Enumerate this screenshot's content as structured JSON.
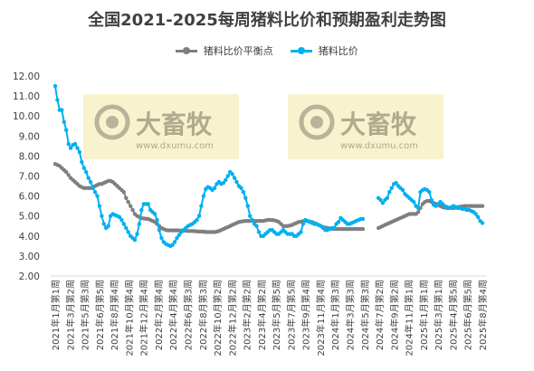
{
  "chart_data": {
    "type": "line",
    "title": "全国2021-2025每周猪料比价和预期盈利走势图",
    "xlabel": "",
    "ylabel": "",
    "ylim": [
      2,
      12
    ],
    "yticks": [
      "2.00",
      "3.00",
      "4.00",
      "5.00",
      "6.00",
      "7.00",
      "8.00",
      "9.00",
      "10.00",
      "11.00",
      "12.00"
    ],
    "grid": false,
    "legend_position": "top",
    "x_tick_labels": [
      "2021年1月第1周",
      "2021年3月第2周",
      "2021年5月第3周",
      "2021年6月第5周",
      "2021年8月第4周",
      "2021年10月第4周",
      "2021年12月第4周",
      "2022年2月第4周",
      "2022年4月第4周",
      "2022年6月第3周",
      "2022年8月第3周",
      "2022年10月第2周",
      "2022年12月第2周",
      "2023年2月第2周",
      "2023年4月第2周",
      "2023年5月第5周",
      "2023年7月第5周",
      "2023年9月第4周",
      "2023年11月第4周",
      "2024年1月第3周",
      "2024年3月第3周",
      "2024年5月第3周",
      "2024年7月第2周",
      "2024年9月第2周",
      "2024年11月第1周",
      "2025年1月第1周",
      "2025年3月第1周",
      "2025年4月第5周",
      "2025年6月第5周",
      "2025年8月第4周"
    ],
    "series": [
      {
        "name": "猪料比价平衡点",
        "color": "#7f7f7f",
        "values": [
          7.6,
          7.55,
          7.5,
          7.4,
          7.3,
          7.2,
          7.05,
          6.9,
          6.8,
          6.7,
          6.6,
          6.5,
          6.45,
          6.4,
          6.4,
          6.4,
          6.4,
          6.45,
          6.5,
          6.55,
          6.6,
          6.6,
          6.65,
          6.7,
          6.75,
          6.75,
          6.7,
          6.6,
          6.5,
          6.4,
          6.3,
          6.2,
          5.9,
          5.7,
          5.5,
          5.3,
          5.1,
          5.0,
          4.95,
          4.9,
          4.88,
          4.86,
          4.85,
          4.8,
          4.75,
          4.7,
          4.6,
          4.5,
          4.4,
          4.35,
          4.3,
          4.28,
          4.28,
          4.28,
          4.28,
          4.28,
          4.27,
          4.27,
          4.27,
          4.26,
          4.25,
          4.25,
          4.25,
          4.24,
          4.23,
          4.22,
          4.22,
          4.22,
          4.2,
          4.2,
          4.2,
          4.2,
          4.2,
          4.22,
          4.25,
          4.3,
          4.35,
          4.4,
          4.45,
          4.5,
          4.55,
          4.6,
          4.65,
          4.7,
          4.72,
          4.74,
          4.75,
          4.75,
          4.75,
          4.75,
          4.75,
          4.75,
          4.75,
          4.75,
          4.75,
          4.78,
          4.8,
          4.8,
          4.8,
          4.78,
          4.75,
          4.7,
          4.6,
          4.5,
          4.5,
          4.5,
          4.52,
          4.55,
          4.6,
          4.65,
          4.7,
          4.72,
          4.74,
          4.75,
          4.75,
          4.72,
          4.7,
          4.65,
          4.6,
          4.55,
          4.5,
          4.45,
          4.42,
          4.4,
          4.38,
          4.36,
          4.35,
          4.35,
          4.35,
          4.35,
          4.35,
          4.35,
          4.35,
          4.35,
          4.35,
          4.35,
          4.35,
          4.35,
          4.35,
          4.35,
          null,
          null,
          null,
          null,
          null,
          null,
          4.4,
          4.45,
          4.5,
          4.55,
          4.6,
          4.65,
          4.7,
          4.75,
          4.8,
          4.85,
          4.9,
          4.95,
          5.0,
          5.05,
          5.1,
          5.1,
          5.1,
          5.1,
          5.2,
          5.4,
          5.6,
          5.7,
          5.75,
          5.75,
          5.7,
          5.65,
          5.6,
          5.55,
          5.5,
          5.45,
          5.42,
          5.4,
          5.4,
          5.4,
          5.4,
          5.42,
          5.44,
          5.46,
          5.48,
          5.5,
          5.5,
          5.5,
          5.5,
          5.5,
          5.5,
          5.5,
          5.5,
          5.5
        ]
      },
      {
        "name": "猪料比价",
        "color": "#00b0f0",
        "values": [
          11.5,
          10.8,
          10.3,
          10.3,
          9.7,
          9.3,
          8.6,
          8.4,
          8.55,
          8.6,
          8.4,
          8.2,
          7.7,
          7.4,
          7.2,
          6.9,
          6.7,
          6.4,
          6.2,
          6.0,
          5.5,
          5.0,
          4.6,
          4.4,
          4.5,
          5.0,
          5.1,
          5.05,
          5.0,
          4.95,
          4.8,
          4.6,
          4.4,
          4.2,
          4.0,
          3.9,
          3.8,
          4.1,
          4.6,
          5.3,
          5.6,
          5.6,
          5.6,
          5.3,
          5.2,
          5.1,
          4.8,
          4.3,
          3.9,
          3.7,
          3.6,
          3.55,
          3.5,
          3.55,
          3.7,
          3.9,
          4.05,
          4.2,
          4.3,
          4.4,
          4.5,
          4.55,
          4.6,
          4.7,
          4.8,
          5.0,
          5.5,
          6.0,
          6.35,
          6.45,
          6.4,
          6.3,
          6.4,
          6.6,
          6.7,
          6.6,
          6.65,
          6.8,
          7.0,
          7.2,
          7.1,
          6.9,
          6.7,
          6.5,
          6.4,
          6.2,
          5.9,
          5.5,
          5.0,
          4.8,
          4.6,
          4.5,
          4.2,
          4.0,
          4.0,
          4.1,
          4.2,
          4.3,
          4.3,
          4.2,
          4.1,
          4.1,
          4.2,
          4.3,
          4.2,
          4.1,
          4.1,
          4.1,
          4.0,
          4.0,
          4.1,
          4.2,
          4.6,
          4.8,
          4.75,
          4.7,
          4.65,
          4.6,
          4.6,
          4.55,
          4.5,
          4.4,
          4.3,
          4.3,
          4.35,
          4.4,
          4.4,
          4.6,
          4.7,
          4.9,
          4.8,
          4.7,
          4.6,
          4.6,
          4.65,
          4.7,
          4.75,
          4.8,
          4.85,
          4.85,
          null,
          null,
          null,
          null,
          null,
          null,
          5.9,
          5.8,
          5.65,
          5.8,
          5.9,
          6.2,
          6.4,
          6.6,
          6.65,
          6.5,
          6.4,
          6.3,
          6.1,
          6.0,
          5.9,
          5.8,
          5.7,
          5.5,
          5.4,
          6.2,
          6.3,
          6.35,
          6.3,
          6.2,
          5.8,
          5.55,
          5.5,
          5.6,
          5.7,
          5.6,
          5.5,
          5.45,
          5.4,
          5.45,
          5.5,
          5.45,
          5.4,
          5.4,
          5.35,
          5.35,
          5.3,
          5.3,
          5.25,
          5.2,
          5.1,
          4.95,
          4.75,
          4.65
        ]
      }
    ]
  },
  "watermark": {
    "brand": "大畜牧",
    "url": "www.dxumu.com"
  }
}
